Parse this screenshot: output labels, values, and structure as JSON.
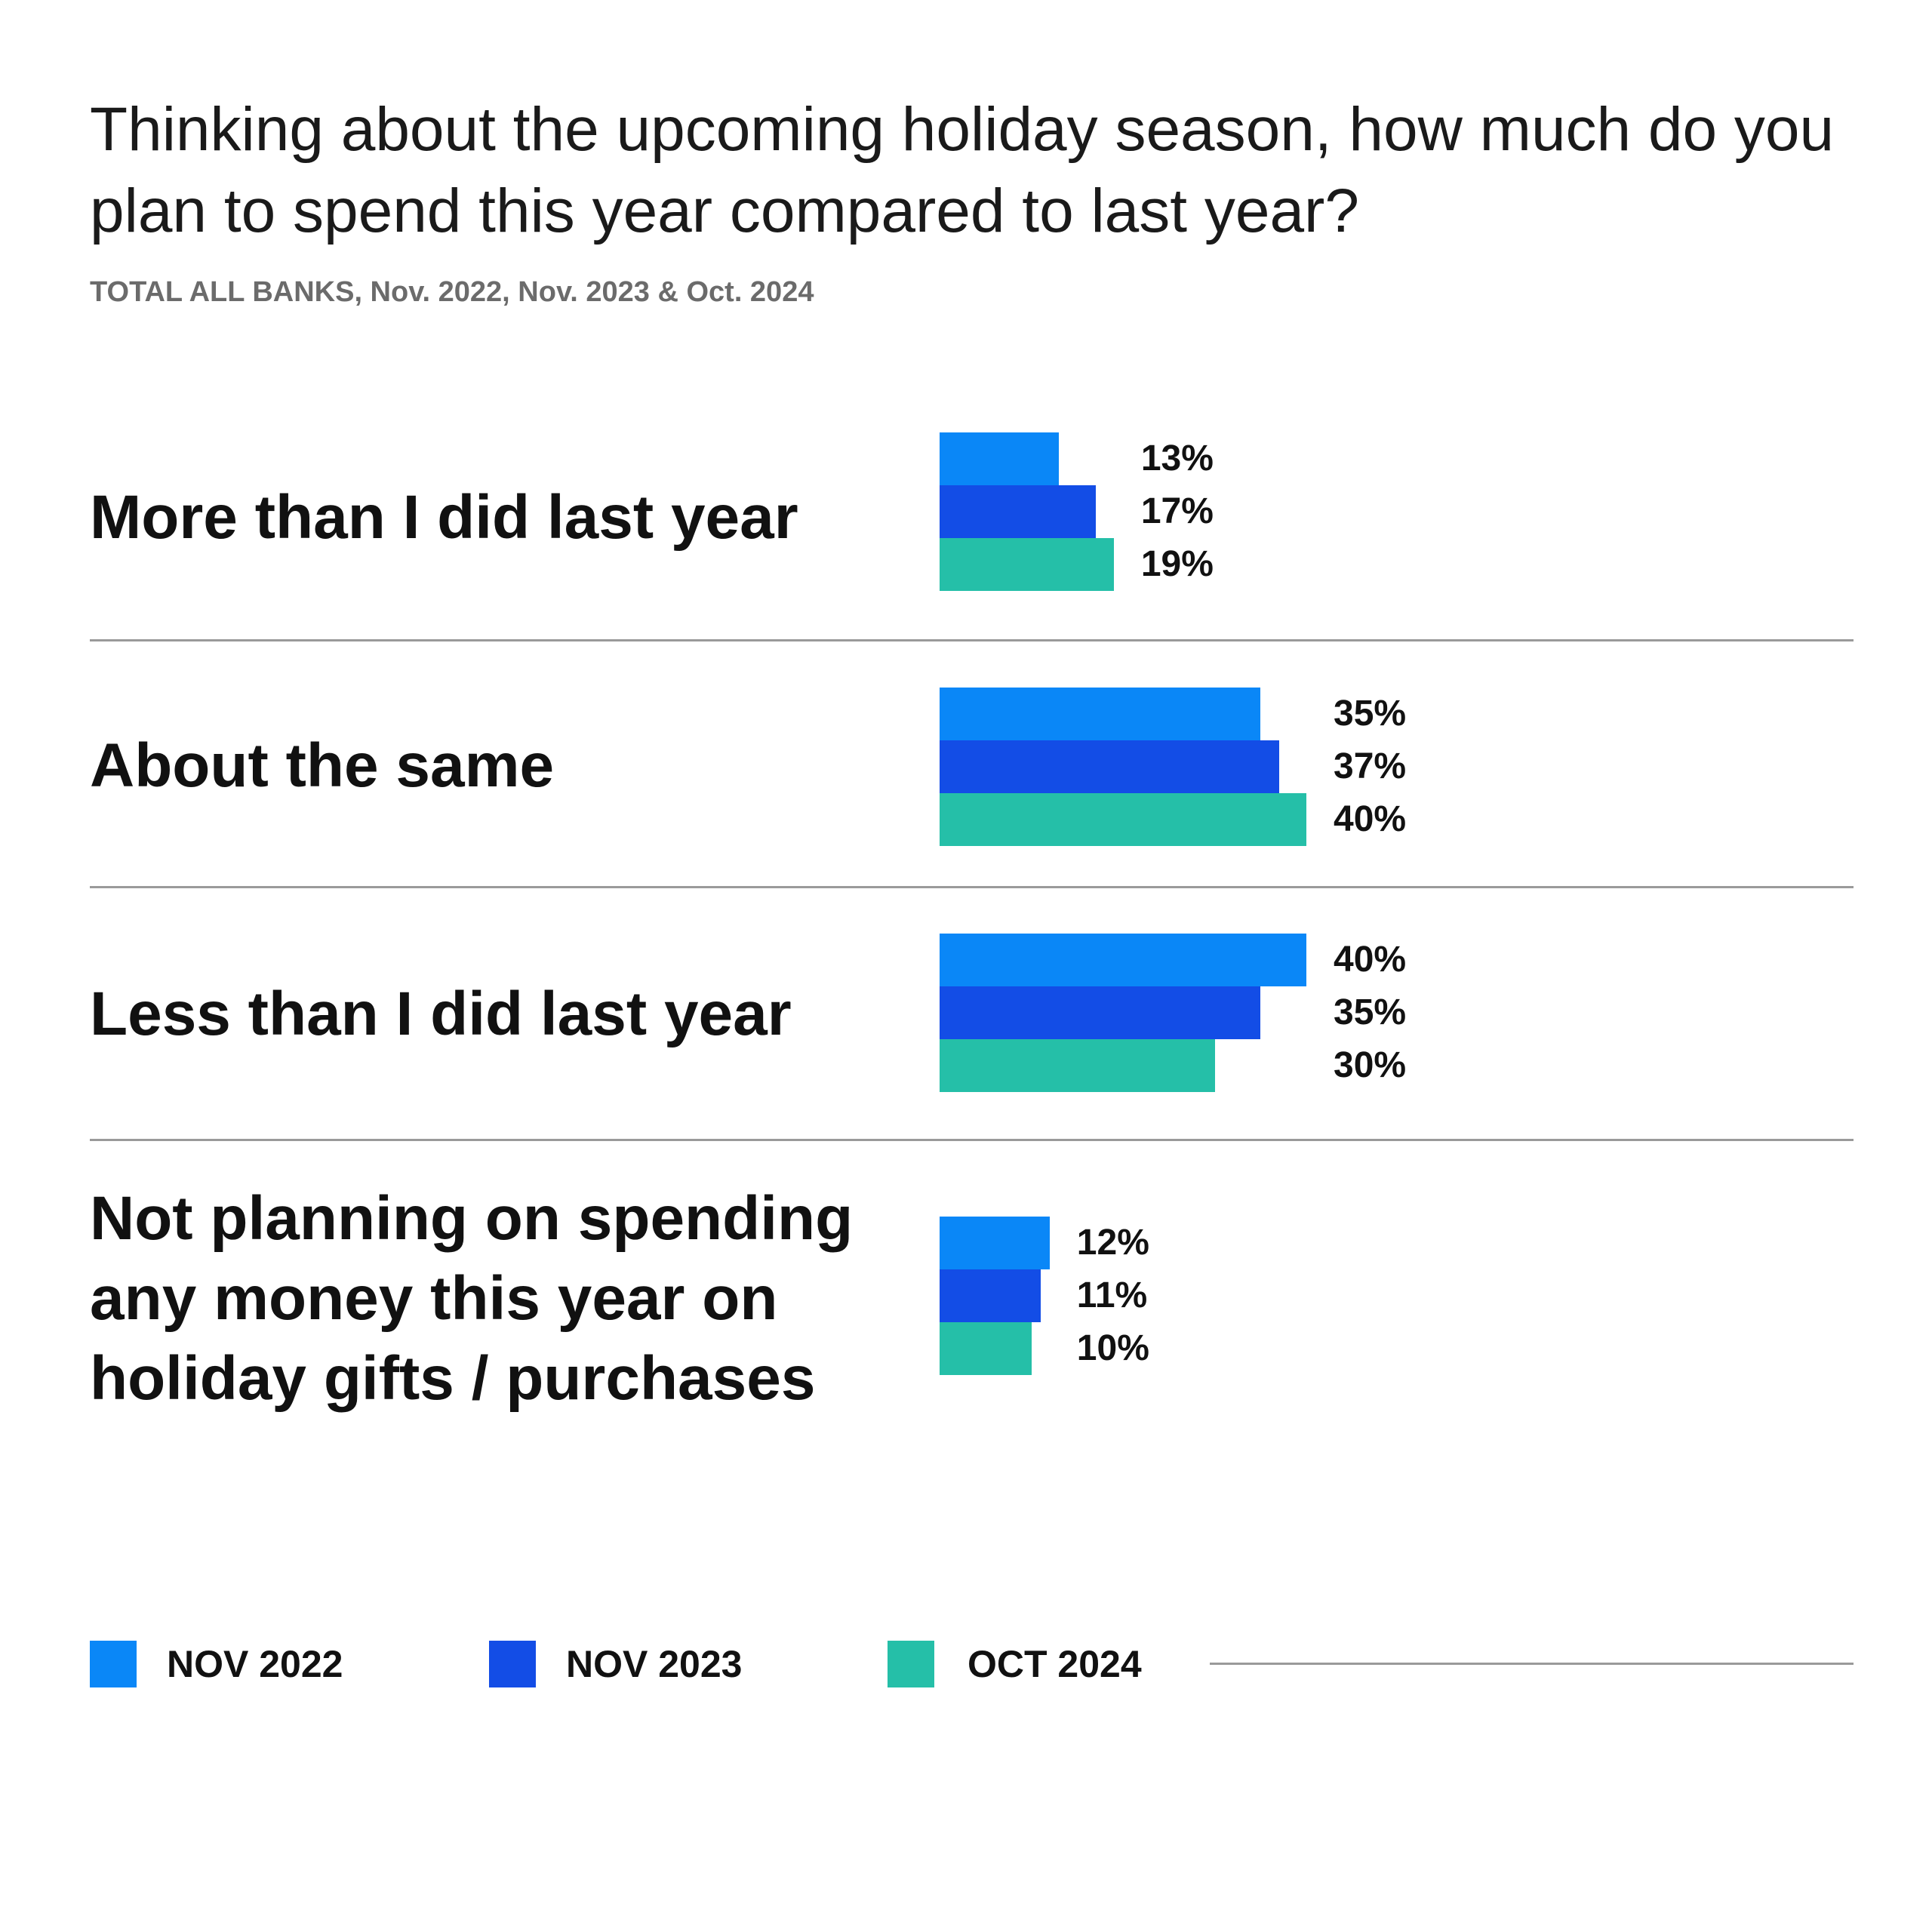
{
  "title": "Thinking about the upcoming holiday season, how much do you plan to spend this year compared to last year?",
  "subtitle": "TOTAL ALL BANKS, Nov. 2022, Nov. 2023 & Oct. 2024",
  "colors": {
    "nov2022": "#0a87f7",
    "nov2023": "#134de6",
    "oct2024": "#25bfa8"
  },
  "chart_data": {
    "type": "bar",
    "orientation": "horizontal",
    "title": "Thinking about the upcoming holiday season, how much do you plan to spend this year compared to last year?",
    "subtitle": "TOTAL ALL BANKS, Nov. 2022, Nov. 2023 & Oct. 2024",
    "categories": [
      "More than I did last year",
      "About the same",
      "Less than I did last year",
      "Not planning on spending any money this year on holiday gifts / purchases"
    ],
    "series": [
      {
        "name": "NOV 2022",
        "values": [
          13,
          35,
          40,
          12
        ],
        "labels": [
          "13%",
          "35%",
          "40%",
          "12%"
        ]
      },
      {
        "name": "NOV 2023",
        "values": [
          17,
          37,
          35,
          11
        ],
        "labels": [
          "17%",
          "37%",
          "35%",
          "11%"
        ]
      },
      {
        "name": "OCT 2024",
        "values": [
          19,
          40,
          30,
          10
        ],
        "labels": [
          "19%",
          "40%",
          "30%",
          "10%"
        ]
      }
    ],
    "unit": "%",
    "legend_position": "bottom",
    "grid": false
  },
  "legend": [
    {
      "label": "NOV 2022"
    },
    {
      "label": "NOV 2023"
    },
    {
      "label": "OCT 2024"
    }
  ]
}
